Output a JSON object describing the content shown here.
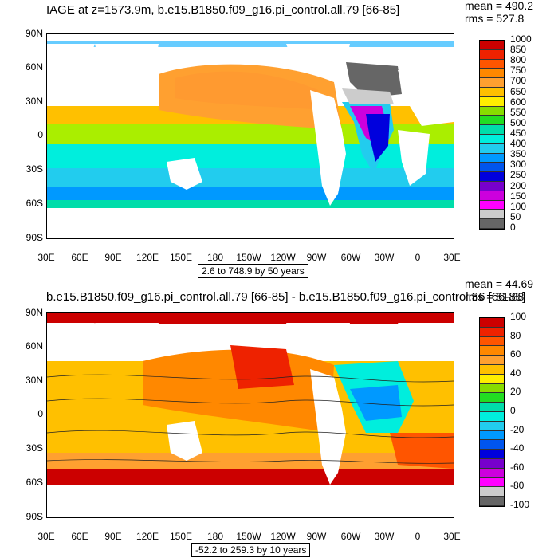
{
  "top": {
    "title": "IAGE at z=1573.9m, b.e15.B1850.f09_g16.pi_control.all.79 [66-85]",
    "mean": "mean = 490.2",
    "rms": "rms = 527.8",
    "contour_info": "2.6 to 748.9 by 50 years",
    "colorbar": {
      "colors": [
        "#cc0000",
        "#ee2200",
        "#ff5500",
        "#ff8800",
        "#ffa030",
        "#ffc000",
        "#ffee00",
        "#88dd00",
        "#22dd22",
        "#00ddaa",
        "#00eedd",
        "#22ccee",
        "#0099ff",
        "#0055ee",
        "#0000dd",
        "#7700cc",
        "#cc00dd",
        "#ff00ff",
        "#cccccc",
        "#666666"
      ],
      "labels": [
        "1000",
        "850",
        "800",
        "750",
        "700",
        "650",
        "600",
        "550",
        "500",
        "450",
        "400",
        "350",
        "300",
        "250",
        "200",
        "150",
        "100",
        "50",
        "0"
      ]
    }
  },
  "bottom": {
    "title": "b.e15.B1850.f09_g16.pi_control.all.79 [66-85] - b.e15.B1850.f09_g16.pi_control.36 [66-85]",
    "mean": "mean = 44.69",
    "rms": "rms = 51.88",
    "contour_info": "-52.2 to 259.3 by 10 years",
    "colorbar": {
      "colors": [
        "#cc0000",
        "#ee2200",
        "#ff5500",
        "#ff8800",
        "#ffa030",
        "#ffc000",
        "#ffee00",
        "#88dd00",
        "#22dd22",
        "#00ddaa",
        "#00eedd",
        "#22ccee",
        "#0099ff",
        "#0055ee",
        "#0000dd",
        "#7700cc",
        "#cc00dd",
        "#ff00ff",
        "#cccccc",
        "#666666"
      ],
      "labels": [
        "100",
        "80",
        "60",
        "40",
        "20",
        "0",
        "-20",
        "-40",
        "-60",
        "-80",
        "-100"
      ]
    }
  },
  "axes": {
    "lat_labels": [
      "90N",
      "60N",
      "30N",
      "0",
      "30S",
      "60S",
      "90S"
    ],
    "lon_labels": [
      "30E",
      "60E",
      "90E",
      "120E",
      "150E",
      "180",
      "150W",
      "120W",
      "90W",
      "60W",
      "30W",
      "0",
      "30E"
    ]
  }
}
